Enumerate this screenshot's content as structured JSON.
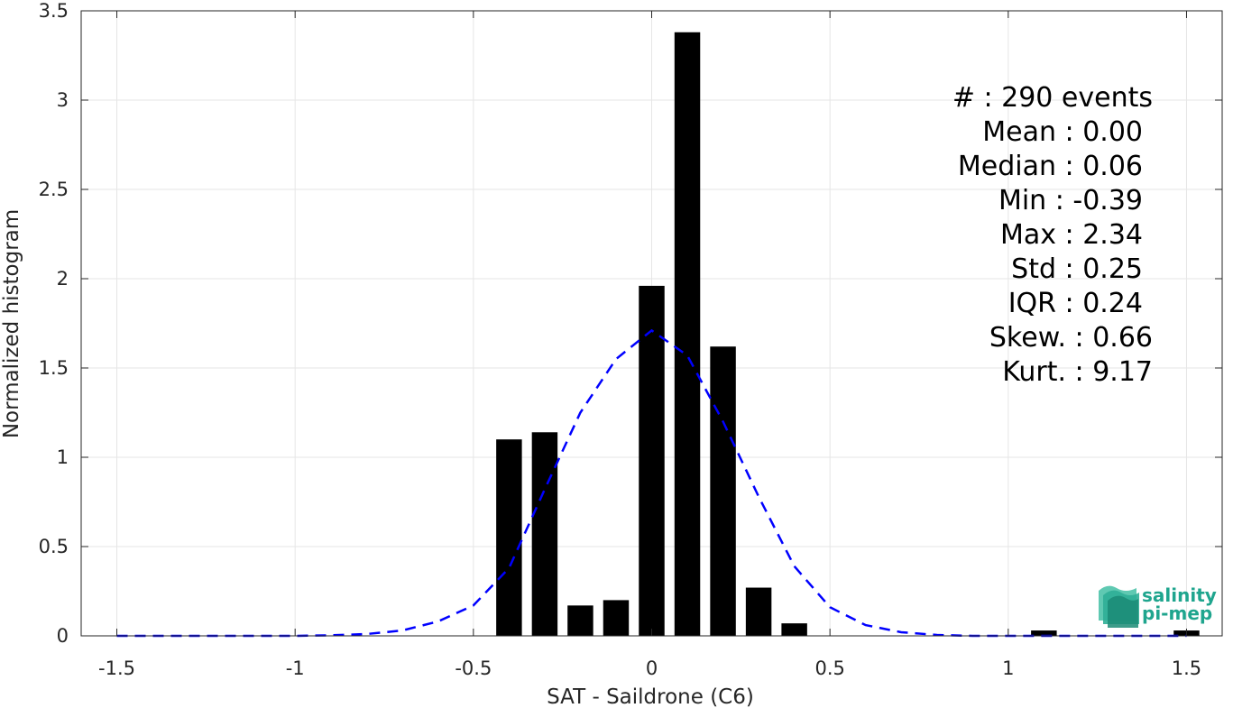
{
  "chart_data": {
    "type": "bar",
    "xlabel": "SAT - Saildrone (C6)",
    "ylabel": "Normalized histogram",
    "xlim": [
      -1.6,
      1.6
    ],
    "ylim": [
      0,
      3.5
    ],
    "grid": true,
    "x_ticks": [
      {
        "value": -1.5,
        "label": "-1.5"
      },
      {
        "value": -1,
        "label": "-1"
      },
      {
        "value": -0.5,
        "label": "-0.5"
      },
      {
        "value": 0,
        "label": "0"
      },
      {
        "value": 0.5,
        "label": "0.5"
      },
      {
        "value": 1,
        "label": "1"
      },
      {
        "value": 1.5,
        "label": "1.5"
      }
    ],
    "y_ticks": [
      {
        "value": 0,
        "label": "0"
      },
      {
        "value": 0.5,
        "label": "0.5"
      },
      {
        "value": 1,
        "label": "1"
      },
      {
        "value": 1.5,
        "label": "1.5"
      },
      {
        "value": 2,
        "label": "2"
      },
      {
        "value": 2.5,
        "label": "2.5"
      },
      {
        "value": 3,
        "label": "3"
      },
      {
        "value": 3.5,
        "label": "3.5"
      }
    ],
    "bar_width": 0.072,
    "bars": [
      {
        "x": -0.4,
        "y": 1.1
      },
      {
        "x": -0.3,
        "y": 1.14
      },
      {
        "x": -0.2,
        "y": 0.17
      },
      {
        "x": -0.1,
        "y": 0.2
      },
      {
        "x": 0.0,
        "y": 1.96
      },
      {
        "x": 0.1,
        "y": 3.38
      },
      {
        "x": 0.2,
        "y": 1.62
      },
      {
        "x": 0.3,
        "y": 0.27
      },
      {
        "x": 0.4,
        "y": 0.07
      },
      {
        "x": 1.1,
        "y": 0.03
      },
      {
        "x": 1.5,
        "y": 0.03
      }
    ],
    "fit_curve": {
      "style": "dashed",
      "color": "#0000ff",
      "x": [
        -1.5,
        -1.4,
        -1.3,
        -1.2,
        -1.1,
        -1.0,
        -0.9,
        -0.8,
        -0.7,
        -0.6,
        -0.5,
        -0.4,
        -0.3,
        -0.2,
        -0.1,
        0.0,
        0.1,
        0.2,
        0.3,
        0.4,
        0.5,
        0.6,
        0.7,
        0.8,
        0.9,
        1.0,
        1.1,
        1.2,
        1.3,
        1.4,
        1.5
      ],
      "y": [
        0.0,
        0.0,
        0.0,
        0.0,
        0.0,
        0.0,
        0.003,
        0.01,
        0.03,
        0.08,
        0.17,
        0.38,
        0.82,
        1.25,
        1.55,
        1.71,
        1.57,
        1.2,
        0.78,
        0.39,
        0.16,
        0.06,
        0.02,
        0.005,
        0.0,
        0.0,
        0.0,
        0.0,
        0.0,
        0.0,
        0.0
      ]
    },
    "bar_color": "#000000"
  },
  "stats": {
    "lines": [
      "#  : 290 events",
      "Mean : 0.00",
      "Median : 0.06",
      "Min : -0.39",
      "Max : 2.34",
      "Std : 0.25",
      "IQR : 0.24",
      "Skew. : 0.66",
      "Kurt. : 9.17"
    ]
  },
  "logo": {
    "line1": "salinity",
    "line2": "pi-mep",
    "color1": "#1fa58e",
    "color2": "#136b5d"
  }
}
